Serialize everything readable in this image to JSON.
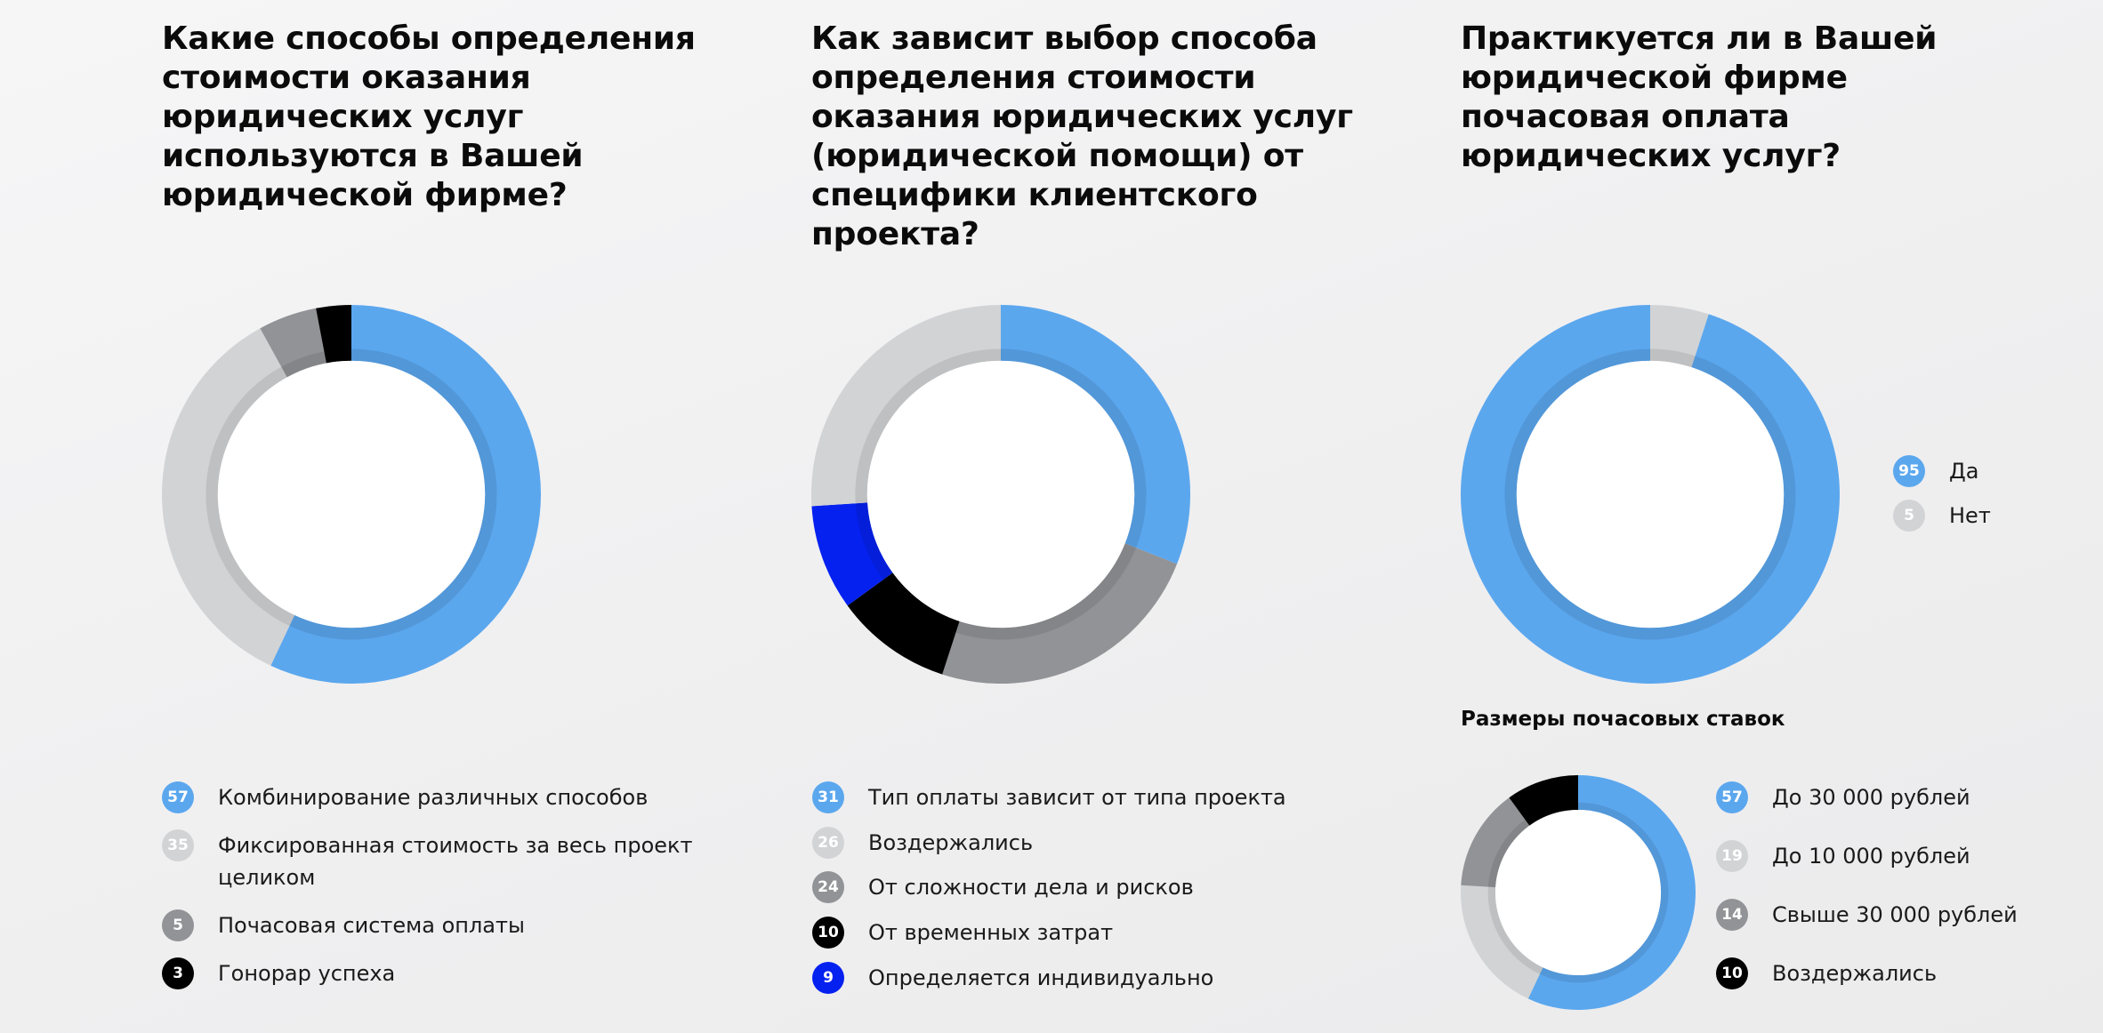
{
  "chart_data": [
    {
      "type": "pie",
      "donut": true,
      "title": "Какие способы определения стоимости оказания юридических услуг используются в Вашей юридической фирме?",
      "categories": [
        "Комбинирование различных способов",
        "Фиксированная стоимость за весь проект целиком",
        "Почасовая система оплаты",
        "Гонорар успеха"
      ],
      "values": [
        57,
        35,
        5,
        3
      ],
      "colors": [
        "#5ba7ee",
        "#d2d3d5",
        "#929396",
        "#000000"
      ],
      "legend_position": "bottom"
    },
    {
      "type": "pie",
      "donut": true,
      "title": "Как зависит выбор способа определения стоимости оказа­ния юридических услуг (юриди­ческой помощи) от специфики клиентского проекта?",
      "categories": [
        "Тип оплаты зависит от типа проекта",
        "Воздержались",
        "От сложности дела и рисков",
        "От временных затрат",
        "Определяется индивидуально"
      ],
      "values": [
        31,
        26,
        24,
        10,
        9
      ],
      "colors": [
        "#5ba7ee",
        "#d2d3d5",
        "#929396",
        "#000000",
        "#0521f0"
      ],
      "draw_order": [
        0,
        2,
        3,
        4,
        1
      ],
      "legend_position": "bottom"
    },
    {
      "type": "pie",
      "donut": true,
      "title": "Практикуется ли в Вашей юридической фирме почасовая оплата юридических услуг?",
      "categories": [
        "Да",
        "Нет"
      ],
      "values": [
        95,
        5
      ],
      "colors": [
        "#5ba7ee",
        "#d2d3d5"
      ],
      "draw_order": [
        1,
        0
      ],
      "legend_position": "right"
    },
    {
      "type": "pie",
      "donut": true,
      "title": "Размеры почасовых ставок",
      "categories": [
        "До 30 000 рублей",
        "До 10 000 рублей",
        "Свыше 30 000 рублей",
        "Воздержались"
      ],
      "values": [
        57,
        19,
        14,
        10
      ],
      "colors": [
        "#5ba7ee",
        "#d2d3d5",
        "#929396",
        "#000000"
      ],
      "legend_position": "right"
    }
  ]
}
